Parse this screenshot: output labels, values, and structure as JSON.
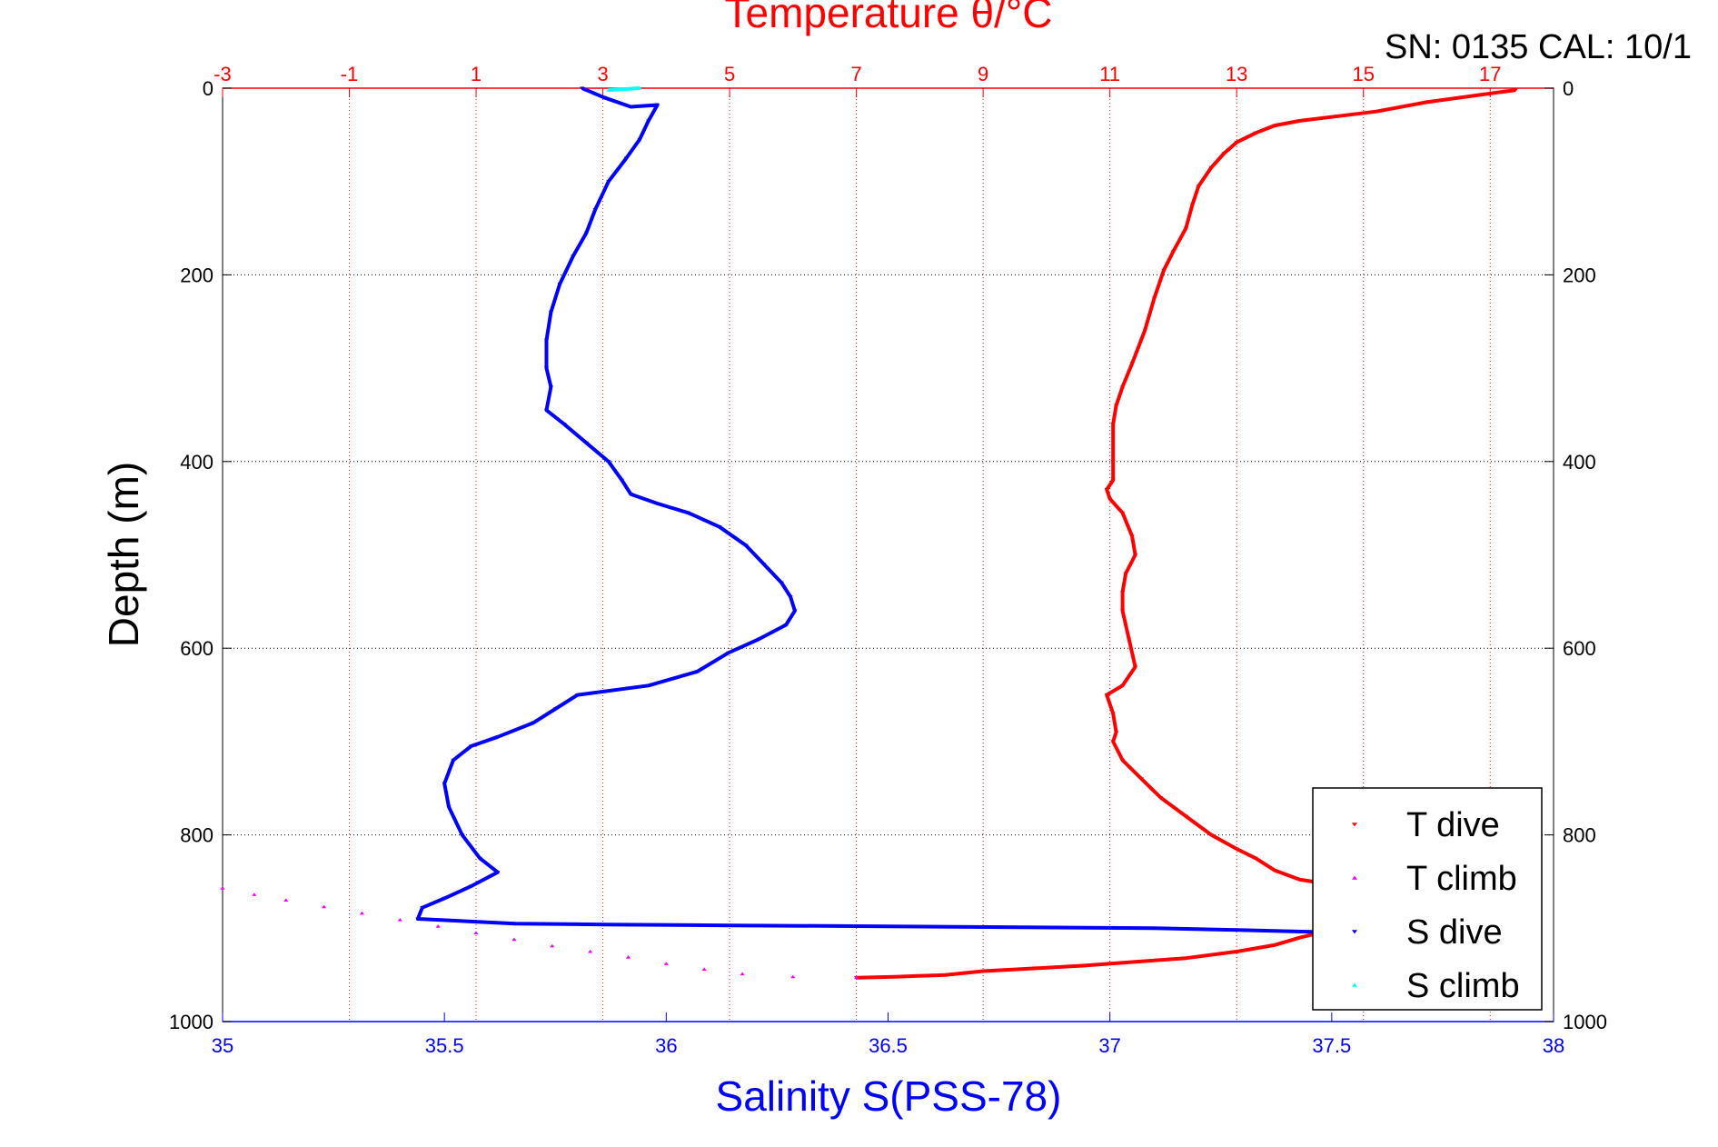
{
  "info_text": "SN: 0135  CAL: 10/1",
  "chart_data": {
    "type": "scatter",
    "title": "",
    "xlabel_bottom": "Salinity S(PSS-78)",
    "xlabel_top": "Temperature θ/°C",
    "ylabel": "Depth (m)",
    "xlim_bottom": [
      35,
      38
    ],
    "xlim_top": [
      -3,
      18
    ],
    "ylim": [
      0,
      1000
    ],
    "y_inverted": true,
    "grid": true,
    "legend_position": "bottom-right",
    "bottom_ticks": [
      "35",
      "35.5",
      "36",
      "36.5",
      "37",
      "37.5",
      "38"
    ],
    "top_ticks": [
      "-3",
      "-1",
      "1",
      "3",
      "5",
      "7",
      "9",
      "11",
      "13",
      "15",
      "17"
    ],
    "y_ticks": [
      "0",
      "200",
      "400",
      "600",
      "800",
      "1000"
    ],
    "colors": {
      "t_dive": "#ff0000",
      "t_climb": "#ff00ff",
      "s_dive": "#0000ff",
      "s_climb": "#00ffff"
    },
    "series": [
      {
        "name": "T dive",
        "axis": "temperature",
        "marker": "triangle-down",
        "points": [
          [
            17.4,
            2
          ],
          [
            16.0,
            15
          ],
          [
            15.2,
            25
          ],
          [
            14.6,
            30
          ],
          [
            14.0,
            35
          ],
          [
            13.6,
            40
          ],
          [
            13.3,
            48
          ],
          [
            13.0,
            58
          ],
          [
            12.8,
            70
          ],
          [
            12.6,
            85
          ],
          [
            12.4,
            105
          ],
          [
            12.3,
            125
          ],
          [
            12.2,
            150
          ],
          [
            12.0,
            175
          ],
          [
            11.85,
            195
          ],
          [
            11.7,
            225
          ],
          [
            11.55,
            260
          ],
          [
            11.35,
            295
          ],
          [
            11.2,
            320
          ],
          [
            11.1,
            340
          ],
          [
            11.05,
            360
          ],
          [
            11.05,
            400
          ],
          [
            11.05,
            420
          ],
          [
            10.95,
            430
          ],
          [
            11.0,
            440
          ],
          [
            11.2,
            455
          ],
          [
            11.35,
            480
          ],
          [
            11.4,
            500
          ],
          [
            11.25,
            520
          ],
          [
            11.2,
            540
          ],
          [
            11.2,
            560
          ],
          [
            11.3,
            590
          ],
          [
            11.4,
            620
          ],
          [
            11.2,
            640
          ],
          [
            10.95,
            650
          ],
          [
            11.05,
            670
          ],
          [
            11.1,
            690
          ],
          [
            11.05,
            700
          ],
          [
            11.2,
            720
          ],
          [
            11.5,
            740
          ],
          [
            11.8,
            760
          ],
          [
            12.2,
            780
          ],
          [
            12.6,
            800
          ],
          [
            13.0,
            815
          ],
          [
            13.3,
            825
          ],
          [
            13.6,
            838
          ],
          [
            14.0,
            848
          ],
          [
            14.4,
            852
          ],
          [
            14.8,
            860
          ],
          [
            15.2,
            875
          ],
          [
            14.6,
            900
          ],
          [
            14.0,
            910
          ],
          [
            13.6,
            918
          ],
          [
            13.0,
            925
          ],
          [
            12.2,
            932
          ],
          [
            11.4,
            936
          ],
          [
            10.6,
            940
          ],
          [
            9.8,
            943
          ],
          [
            9.0,
            946
          ],
          [
            8.4,
            950
          ],
          [
            7.6,
            952
          ],
          [
            7.0,
            953
          ]
        ]
      },
      {
        "name": "T climb",
        "axis": "temperature",
        "marker": "triangle-up",
        "points": [
          [
            7.0,
            953
          ],
          [
            6.0,
            952
          ],
          [
            5.2,
            949
          ],
          [
            4.6,
            944
          ],
          [
            4.0,
            938
          ],
          [
            3.4,
            931
          ],
          [
            2.8,
            925
          ],
          [
            2.2,
            919
          ],
          [
            1.6,
            912
          ],
          [
            1.0,
            905
          ],
          [
            0.4,
            898
          ],
          [
            -0.2,
            891
          ],
          [
            -0.8,
            884
          ],
          [
            -1.4,
            877
          ],
          [
            -2.0,
            870
          ],
          [
            -2.5,
            864
          ],
          [
            -3.0,
            857
          ]
        ]
      },
      {
        "name": "S dive",
        "axis": "salinity",
        "marker": "triangle-down",
        "points": [
          [
            35.81,
            0
          ],
          [
            35.86,
            10
          ],
          [
            35.92,
            20
          ],
          [
            35.98,
            18
          ],
          [
            35.96,
            35
          ],
          [
            35.94,
            55
          ],
          [
            35.91,
            75
          ],
          [
            35.87,
            100
          ],
          [
            35.84,
            130
          ],
          [
            35.82,
            155
          ],
          [
            35.79,
            180
          ],
          [
            35.76,
            210
          ],
          [
            35.74,
            240
          ],
          [
            35.73,
            270
          ],
          [
            35.73,
            300
          ],
          [
            35.74,
            320
          ],
          [
            35.73,
            345
          ],
          [
            35.77,
            360
          ],
          [
            35.82,
            380
          ],
          [
            35.87,
            400
          ],
          [
            35.9,
            420
          ],
          [
            35.92,
            435
          ],
          [
            35.98,
            445
          ],
          [
            36.05,
            455
          ],
          [
            36.12,
            470
          ],
          [
            36.18,
            490
          ],
          [
            36.22,
            510
          ],
          [
            36.26,
            530
          ],
          [
            36.28,
            545
          ],
          [
            36.29,
            560
          ],
          [
            36.27,
            575
          ],
          [
            36.21,
            590
          ],
          [
            36.14,
            605
          ],
          [
            36.07,
            625
          ],
          [
            35.96,
            640
          ],
          [
            35.8,
            650
          ],
          [
            35.75,
            665
          ],
          [
            35.7,
            680
          ],
          [
            35.62,
            695
          ],
          [
            35.56,
            705
          ],
          [
            35.52,
            720
          ],
          [
            35.5,
            745
          ],
          [
            35.51,
            770
          ],
          [
            35.54,
            800
          ],
          [
            35.58,
            825
          ],
          [
            35.62,
            840
          ],
          [
            35.56,
            855
          ],
          [
            35.5,
            868
          ],
          [
            35.45,
            878
          ],
          [
            35.44,
            890
          ],
          [
            35.57,
            893
          ],
          [
            35.66,
            895
          ],
          [
            35.86,
            896
          ],
          [
            36.15,
            897
          ],
          [
            36.5,
            898
          ],
          [
            36.8,
            899
          ],
          [
            37.1,
            900
          ],
          [
            37.3,
            902
          ],
          [
            37.55,
            905
          ]
        ]
      },
      {
        "name": "S climb",
        "axis": "salinity",
        "marker": "triangle-up",
        "points": [
          [
            35.87,
            2
          ],
          [
            35.94,
            0
          ]
        ]
      }
    ]
  }
}
